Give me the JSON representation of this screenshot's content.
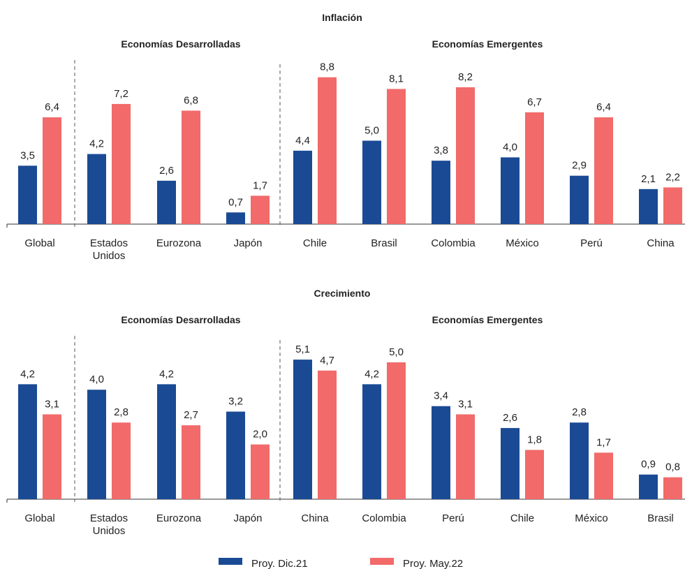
{
  "colors": {
    "dic21": "#1a4a94",
    "may22": "#f26a6a",
    "axis": "#333333",
    "text": "#222222"
  },
  "legend": {
    "dic21": "Proy. Dic.21",
    "may22": "Proy. May.22"
  },
  "chart_data": [
    {
      "type": "bar",
      "title": "Inflación",
      "group_labels": {
        "developed": "Economías Desarrolladas",
        "emerging": "Economías Emergentes"
      },
      "categories": [
        "Global",
        "Estados Unidos",
        "Eurozona",
        "Japón",
        "Chile",
        "Brasil",
        "Colombia",
        "México",
        "Perú",
        "China"
      ],
      "series": [
        {
          "name": "Proy. Dic.21",
          "values": [
            3.5,
            4.2,
            2.6,
            0.7,
            4.4,
            5.0,
            3.8,
            4.0,
            2.9,
            2.1
          ],
          "labels": [
            "3,5",
            "4,2",
            "2,6",
            "0,7",
            "4,4",
            "5,0",
            "3,8",
            "4,0",
            "2,9",
            "2,1"
          ]
        },
        {
          "name": "Proy. May.22",
          "values": [
            6.4,
            7.2,
            6.8,
            1.7,
            8.8,
            8.1,
            8.2,
            6.7,
            6.4,
            2.2
          ],
          "labels": [
            "6,4",
            "7,2",
            "6,8",
            "1,7",
            "8,8",
            "8,1",
            "8,2",
            "6,7",
            "6,4",
            "2,2"
          ]
        }
      ],
      "ylim": [
        0,
        10
      ]
    },
    {
      "type": "bar",
      "title": "Crecimiento",
      "group_labels": {
        "developed": "Economías Desarrolladas",
        "emerging": "Economías Emergentes"
      },
      "categories": [
        "Global",
        "Estados Unidos",
        "Eurozona",
        "Japón",
        "China",
        "Colombia",
        "Perú",
        "Chile",
        "México",
        "Brasil"
      ],
      "series": [
        {
          "name": "Proy. Dic.21",
          "values": [
            4.2,
            4.0,
            4.2,
            3.2,
            5.1,
            4.2,
            3.4,
            2.6,
            2.8,
            0.9
          ],
          "labels": [
            "4,2",
            "4,0",
            "4,2",
            "3,2",
            "5,1",
            "4,2",
            "3,4",
            "2,6",
            "2,8",
            "0,9"
          ]
        },
        {
          "name": "Proy. May.22",
          "values": [
            3.1,
            2.8,
            2.7,
            2.0,
            4.7,
            5.0,
            3.1,
            1.8,
            1.7,
            0.8
          ],
          "labels": [
            "3,1",
            "2,8",
            "2,7",
            "2,0",
            "4,7",
            "5,0",
            "3,1",
            "1,8",
            "1,7",
            "0,8"
          ]
        }
      ],
      "ylim": [
        0,
        6
      ]
    }
  ]
}
